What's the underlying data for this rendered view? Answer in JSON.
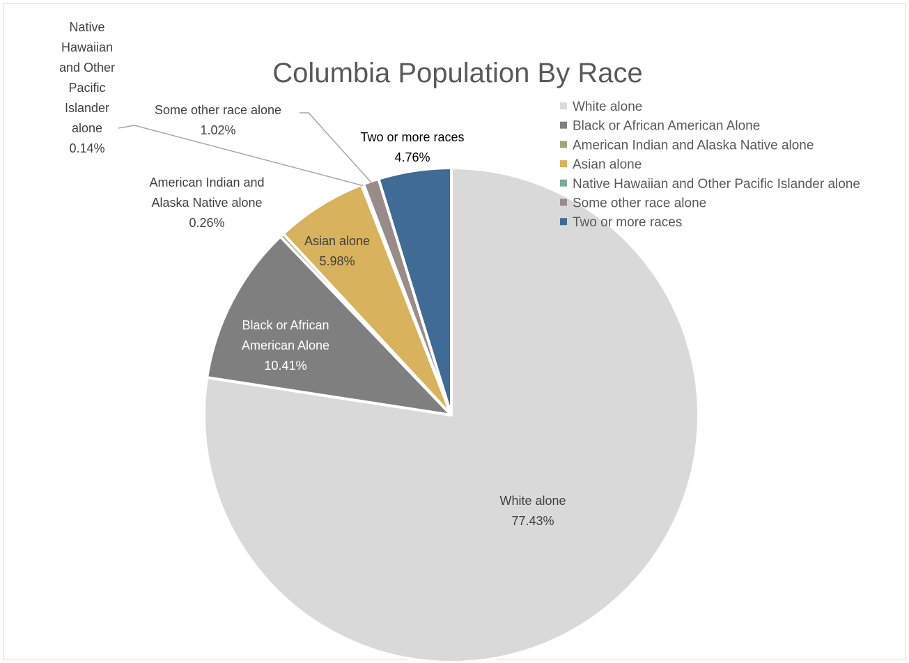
{
  "chart_data": {
    "type": "pie",
    "title": "Columbia Population By Race",
    "legend_position": "top-right",
    "slices": [
      {
        "label": "White alone",
        "value": 77.43,
        "display": "77.43%",
        "color": "#d9d9d9"
      },
      {
        "label": "Black or African American Alone",
        "value": 10.41,
        "display": "10.41%",
        "color": "#7f7f7f"
      },
      {
        "label": "American Indian and Alaska Native alone",
        "value": 0.26,
        "display": "0.26%",
        "color": "#a5a57a"
      },
      {
        "label": "Asian alone",
        "value": 5.98,
        "display": "5.98%",
        "color": "#d8b25c"
      },
      {
        "label": "Native Hawaiian and Other Pacific Islander alone",
        "value": 0.14,
        "display": "0.14%",
        "color": "#7fa89c"
      },
      {
        "label": "Some other race alone",
        "value": 1.02,
        "display": "1.02%",
        "color": "#9a8b8b"
      },
      {
        "label": "Two or more races",
        "value": 4.76,
        "display": "4.76%",
        "color": "#3f6b94"
      }
    ],
    "data_labels": [
      {
        "lines": [
          "White alone",
          "77.43%"
        ]
      },
      {
        "lines": [
          "Black or African",
          "American Alone",
          "10.41%"
        ]
      },
      {
        "lines": [
          "American Indian and",
          "Alaska Native alone",
          "0.26%"
        ]
      },
      {
        "lines": [
          "Asian alone",
          "5.98%"
        ]
      },
      {
        "lines": [
          "Native",
          "Hawaiian",
          "and Other",
          "Pacific",
          "Islander",
          "alone",
          "0.14%"
        ]
      },
      {
        "lines": [
          "Some other race alone",
          "1.02%"
        ]
      },
      {
        "lines": [
          "Two or more races",
          "4.76%"
        ]
      }
    ]
  }
}
